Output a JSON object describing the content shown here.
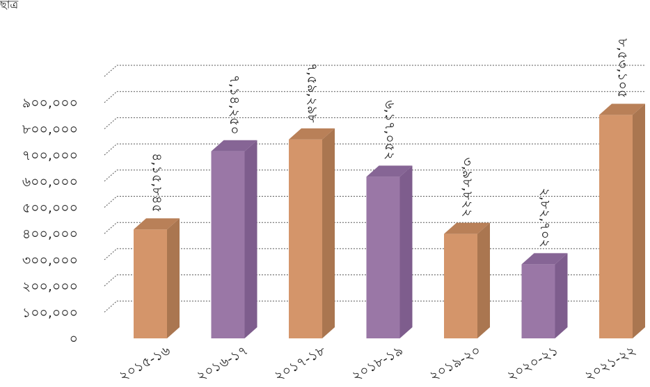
{
  "corner_text": "ছাত্র",
  "chart_data": {
    "type": "bar",
    "style": "3d-column",
    "categories": [
      "২০১৫-১৬",
      "২০১৬-১৭",
      "২০১৭-১৮",
      "২০১৮-১৯",
      "২০১৯-২০",
      "২০২০-২১",
      "২০২১-২২"
    ],
    "values": [
      415845,
      714250,
      759298,
      617052,
      398822,
      282702,
      853105
    ],
    "data_labels": [
      "৪,১৫,৮৪৫",
      "৭,১৪,২৫০",
      "৭,৫৯,২৯৮",
      "৬,১৭,০৫২",
      "৩,৯৮,৮২২",
      "২,৮২,৭০২",
      "৮,৫৩,১০৫"
    ],
    "y_ticks": [
      0,
      100000,
      200000,
      300000,
      400000,
      500000,
      600000,
      700000,
      800000,
      900000
    ],
    "y_tick_labels": [
      "০",
      "১০০,০০০",
      "২০০,০০০",
      "৩০০,০০০",
      "৪০০,০০০",
      "৫০০,০০০",
      "৬০০,০০০",
      "৭০০,০০০",
      "৮০০,০০০",
      "৯০০,০০০"
    ],
    "ylim": [
      0,
      900000
    ],
    "title": "",
    "xlabel": "",
    "ylabel": "",
    "grid": true,
    "legend": "none",
    "colors": {
      "orange_front": "#D4956A",
      "orange_side": "#AA7650",
      "orange_top": "#B98058",
      "purple_front": "#9A77A6",
      "purple_side": "#7E5D8D",
      "purple_top": "#866595",
      "grid": "#555555"
    },
    "bar_color_pattern": [
      "orange",
      "purple",
      "orange",
      "purple",
      "orange",
      "purple",
      "orange"
    ]
  }
}
